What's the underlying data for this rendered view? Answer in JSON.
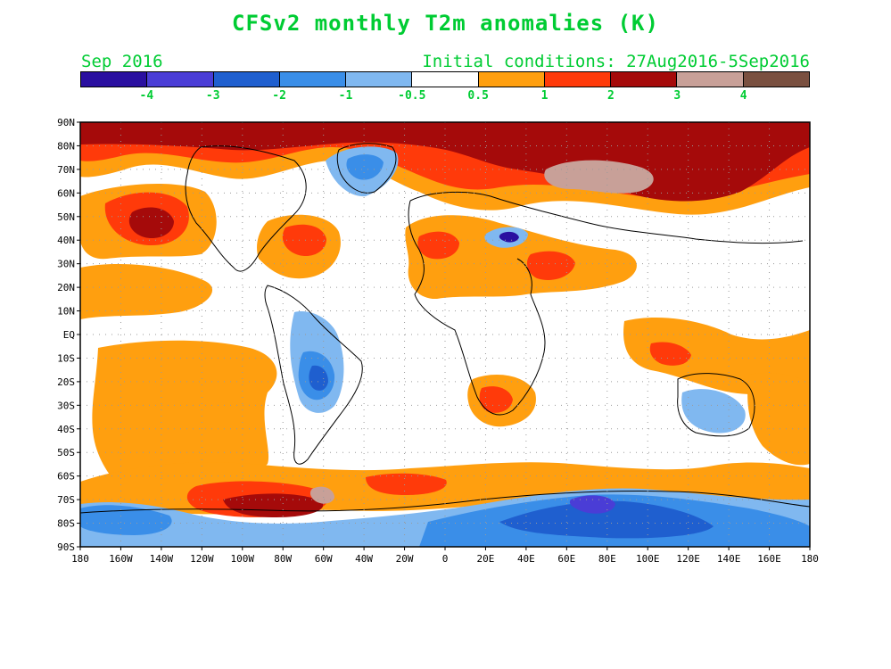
{
  "title": "CFSv2 monthly T2m anomalies (K)",
  "valid_month": "Sep 2016",
  "initial_conditions": "Initial conditions: 27Aug2016-5Sep2016",
  "colorbar": {
    "colors": [
      "#2a0fa0",
      "#4a3dd6",
      "#1f5fcf",
      "#3a8ee8",
      "#80b8f0",
      "#ffffff",
      "#ff9f0f",
      "#ff3a0a",
      "#a50a0a",
      "#c8a098",
      "#7a5040"
    ],
    "labels": [
      "-4",
      "-3",
      "-2",
      "-1",
      "-0.5",
      "0.5",
      "1",
      "2",
      "3",
      "4"
    ]
  },
  "lat_labels": [
    "90N",
    "80N",
    "70N",
    "60N",
    "50N",
    "40N",
    "30N",
    "20N",
    "10N",
    "EQ",
    "10S",
    "20S",
    "30S",
    "40S",
    "50S",
    "60S",
    "70S",
    "80S",
    "90S"
  ],
  "lon_labels": [
    "180",
    "160W",
    "140W",
    "120W",
    "100W",
    "80W",
    "60W",
    "40W",
    "20W",
    "0",
    "20E",
    "40E",
    "60E",
    "80E",
    "100E",
    "120E",
    "140E",
    "160E",
    "180"
  ]
}
